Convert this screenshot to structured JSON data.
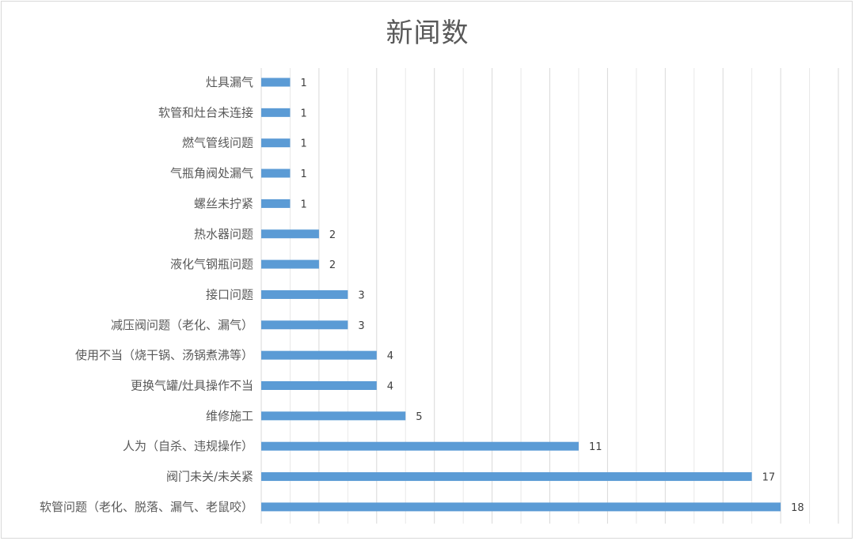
{
  "chart_data": {
    "type": "bar",
    "orientation": "horizontal",
    "title": "新闻数",
    "xlabel": "",
    "ylabel": "",
    "xlim": [
      0,
      20
    ],
    "grid": true,
    "data_labels": true,
    "bar_color": "#5b9bd5",
    "categories": [
      "灶具漏气",
      "软管和灶台未连接",
      "燃气管线问题",
      "气瓶角阀处漏气",
      "螺丝未拧紧",
      "热水器问题",
      "液化气钢瓶问题",
      "接口问题",
      "减压阀问题（老化、漏气）",
      "使用不当（烧干锅、汤锅煮沸等）",
      "更换气罐/灶具操作不当",
      "维修施工",
      "人为（自杀、违规操作）",
      "阀门未关/未关紧",
      "软管问题（老化、脱落、漏气、老鼠咬）"
    ],
    "values": [
      1,
      1,
      1,
      1,
      1,
      2,
      2,
      3,
      3,
      4,
      4,
      5,
      11,
      17,
      18
    ]
  }
}
